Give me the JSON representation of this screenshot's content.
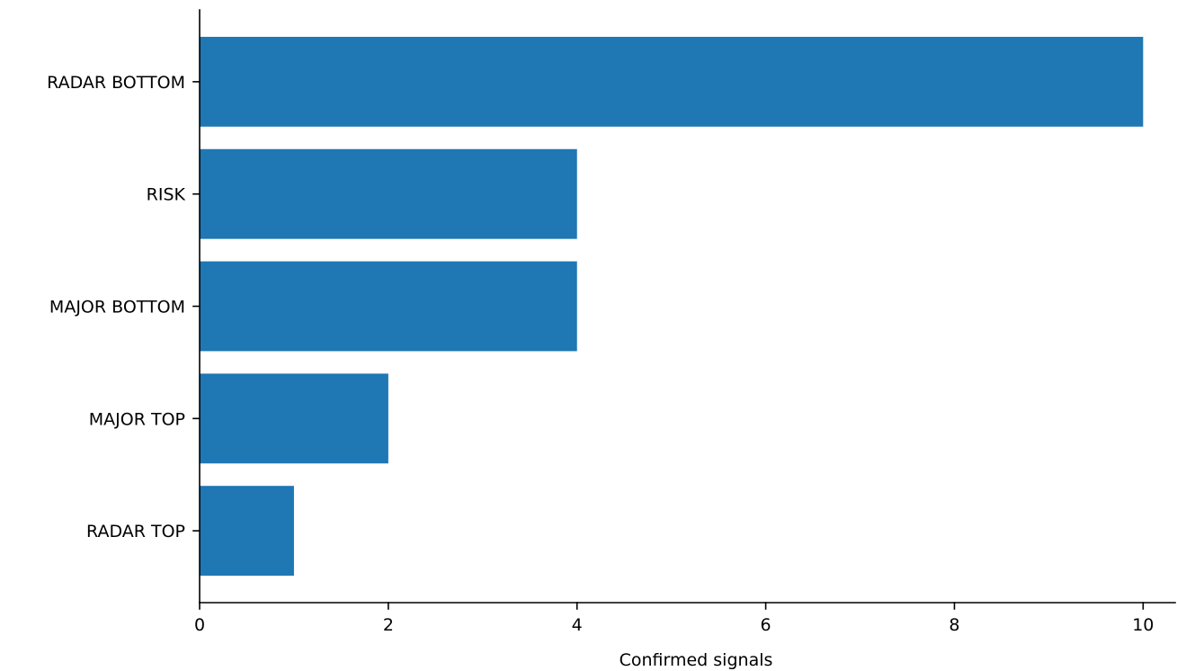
{
  "chart_data": {
    "type": "bar",
    "orientation": "horizontal",
    "title": "",
    "xlabel": "Confirmed signals",
    "ylabel": "",
    "categories": [
      "RADAR TOP",
      "MAJOR TOP",
      "MAJOR BOTTOM",
      "RISK",
      "RADAR BOTTOM"
    ],
    "values": [
      1,
      2,
      4,
      4,
      10
    ],
    "xlim": [
      0,
      10.34
    ],
    "xticks": [
      0,
      2,
      4,
      6,
      8,
      10
    ],
    "xtick_labels": [
      "0",
      "2",
      "4",
      "6",
      "8",
      "10"
    ],
    "bar_color": "#1f77b4",
    "grid": false,
    "legend": "none"
  }
}
